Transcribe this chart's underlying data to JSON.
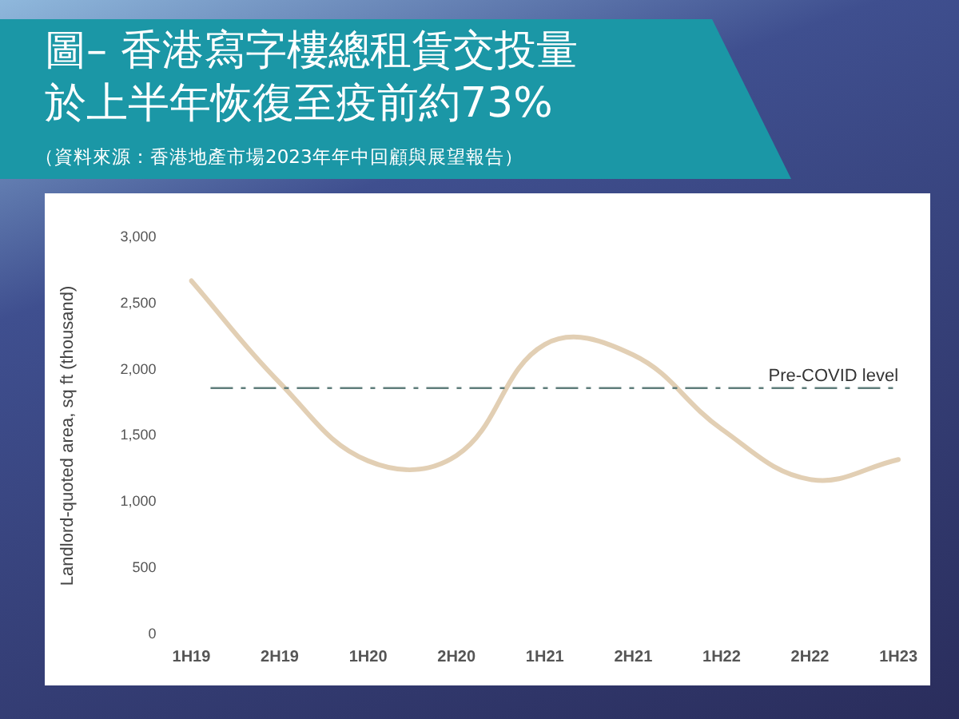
{
  "chart_data": {
    "type": "line",
    "title": "圖– 香港寫字樓總租賃交投量於上半年恢復至疫前約73%",
    "annotations": [
      "（資料來源：香港地產市場2023年年中回顧與展望報告）"
    ],
    "ylabel": "Landlord-quoted area, sq ft (thousand)",
    "categories": [
      "1H19",
      "2H19",
      "1H20",
      "2H20",
      "1H21",
      "2H21",
      "1H22",
      "2H22",
      "1H23"
    ],
    "series": [
      {
        "color": "#e2cfb4",
        "values": [
          2670,
          1900,
          1310,
          1350,
          2190,
          2110,
          1550,
          1170,
          1320
        ]
      }
    ],
    "ylim": [
      0,
      3000
    ],
    "yticks": [
      {
        "value": 0,
        "label": "0"
      },
      {
        "value": 500,
        "label": "500"
      },
      {
        "value": 1000,
        "label": "1,000"
      },
      {
        "value": 1500,
        "label": "1,500"
      },
      {
        "value": 2000,
        "label": "2,000"
      },
      {
        "value": 2500,
        "label": "2,500"
      },
      {
        "value": 3000,
        "label": "3,000"
      }
    ],
    "ref_lines": [
      {
        "axis": "y",
        "value": 1860,
        "label": "Pre-COVID level",
        "color": "#5f7d7b",
        "line_style": "dashdot"
      }
    ],
    "grid": false,
    "legend": false,
    "marker": "none",
    "line_style": "solid"
  }
}
